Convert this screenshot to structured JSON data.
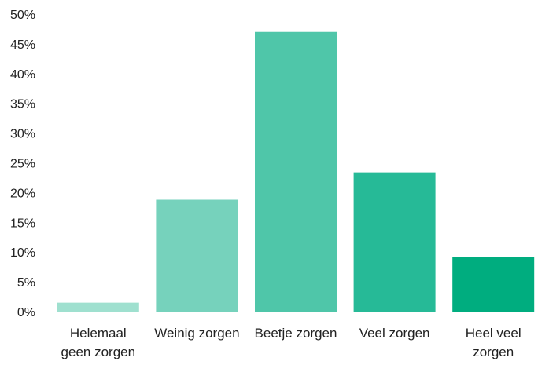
{
  "chart_data": {
    "type": "bar",
    "title": "",
    "xlabel": "",
    "ylabel": "",
    "categories": [
      [
        "Helemaal",
        "geen zorgen"
      ],
      [
        "Weinig zorgen"
      ],
      [
        "Beetje zorgen"
      ],
      [
        "Veel zorgen"
      ],
      [
        "Heel veel",
        "zorgen"
      ]
    ],
    "values": [
      1.5,
      18.8,
      47.0,
      23.4,
      9.2
    ],
    "colors": [
      "#9fe0cf",
      "#76d2bc",
      "#4fc6a9",
      "#26ba97",
      "#00ad7f"
    ],
    "ylim": [
      0,
      50
    ],
    "yticks": [
      0,
      5,
      10,
      15,
      20,
      25,
      30,
      35,
      40,
      45,
      50
    ],
    "ytick_suffix": "%",
    "grid": false,
    "legend": "none"
  }
}
